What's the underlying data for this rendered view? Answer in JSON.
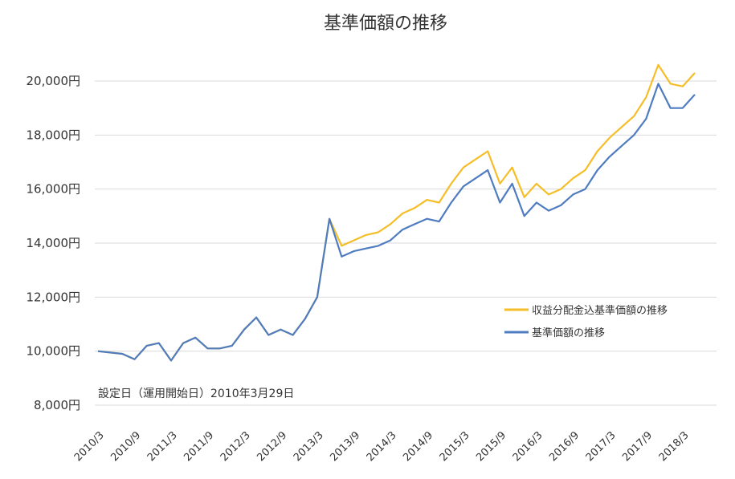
{
  "chart_data": {
    "type": "line",
    "title": "基準価額の推移",
    "xlabel": "",
    "ylabel": "",
    "ylim": [
      8000,
      21000
    ],
    "yticks": [
      8000,
      10000,
      12000,
      14000,
      16000,
      18000,
      20000
    ],
    "ytick_labels": [
      "8,000円",
      "10,000円",
      "12,000円",
      "14,000円",
      "16,000円",
      "18,000円",
      "20,000円"
    ],
    "xticks": [
      "2010/3",
      "2010/9",
      "2011/3",
      "2011/9",
      "2012/3",
      "2012/9",
      "2013/3",
      "2013/9",
      "2014/3",
      "2014/9",
      "2015/3",
      "2015/9",
      "2016/3",
      "2016/9",
      "2017/3",
      "2017/9",
      "2018/3"
    ],
    "grid": true,
    "legend_position": "right",
    "annotation": "設定日（運用開始日）2010年3月29日",
    "series": [
      {
        "name": "収益分配金込基準価額の推移",
        "color": "#f5be28",
        "x": [
          "2010/3",
          "2010/5",
          "2010/7",
          "2010/9",
          "2010/11",
          "2011/1",
          "2011/3",
          "2011/5",
          "2011/7",
          "2011/9",
          "2011/11",
          "2012/1",
          "2012/3",
          "2012/5",
          "2012/7",
          "2012/9",
          "2012/11",
          "2013/1",
          "2013/3",
          "2013/5",
          "2013/7",
          "2013/9",
          "2013/11",
          "2014/1",
          "2014/3",
          "2014/5",
          "2014/7",
          "2014/9",
          "2014/11",
          "2015/1",
          "2015/3",
          "2015/5",
          "2015/7",
          "2015/9",
          "2015/11",
          "2016/1",
          "2016/3",
          "2016/5",
          "2016/7",
          "2016/9",
          "2016/11",
          "2017/1",
          "2017/3",
          "2017/5",
          "2017/7",
          "2017/9",
          "2017/11",
          "2018/1",
          "2018/3",
          "2018/5"
        ],
        "values": [
          10000,
          9950,
          9900,
          9700,
          10200,
          10300,
          9650,
          10300,
          10500,
          10100,
          10100,
          10200,
          10800,
          11250,
          10600,
          10800,
          10600,
          11200,
          12000,
          14900,
          13900,
          14100,
          14300,
          14400,
          14700,
          15100,
          15300,
          15600,
          15500,
          16200,
          16800,
          17100,
          17400,
          16200,
          16800,
          15700,
          16200,
          15800,
          16000,
          16400,
          16700,
          17400,
          17900,
          18300,
          18700,
          19400,
          20600,
          19900,
          19800,
          20300
        ]
      },
      {
        "name": "基準価額の推移",
        "color": "#4f7cc0",
        "x": [
          "2010/3",
          "2010/5",
          "2010/7",
          "2010/9",
          "2010/11",
          "2011/1",
          "2011/3",
          "2011/5",
          "2011/7",
          "2011/9",
          "2011/11",
          "2012/1",
          "2012/3",
          "2012/5",
          "2012/7",
          "2012/9",
          "2012/11",
          "2013/1",
          "2013/3",
          "2013/5",
          "2013/7",
          "2013/9",
          "2013/11",
          "2014/1",
          "2014/3",
          "2014/5",
          "2014/7",
          "2014/9",
          "2014/11",
          "2015/1",
          "2015/3",
          "2015/5",
          "2015/7",
          "2015/9",
          "2015/11",
          "2016/1",
          "2016/3",
          "2016/5",
          "2016/7",
          "2016/9",
          "2016/11",
          "2017/1",
          "2017/3",
          "2017/5",
          "2017/7",
          "2017/9",
          "2017/11",
          "2018/1",
          "2018/3",
          "2018/5"
        ],
        "values": [
          10000,
          9950,
          9900,
          9700,
          10200,
          10300,
          9650,
          10300,
          10500,
          10100,
          10100,
          10200,
          10800,
          11250,
          10600,
          10800,
          10600,
          11200,
          12000,
          14900,
          13500,
          13700,
          13800,
          13900,
          14100,
          14500,
          14700,
          14900,
          14800,
          15500,
          16100,
          16400,
          16700,
          15500,
          16200,
          15000,
          15500,
          15200,
          15400,
          15800,
          16000,
          16700,
          17200,
          17600,
          18000,
          18600,
          19900,
          19000,
          19000,
          19500
        ]
      }
    ]
  }
}
